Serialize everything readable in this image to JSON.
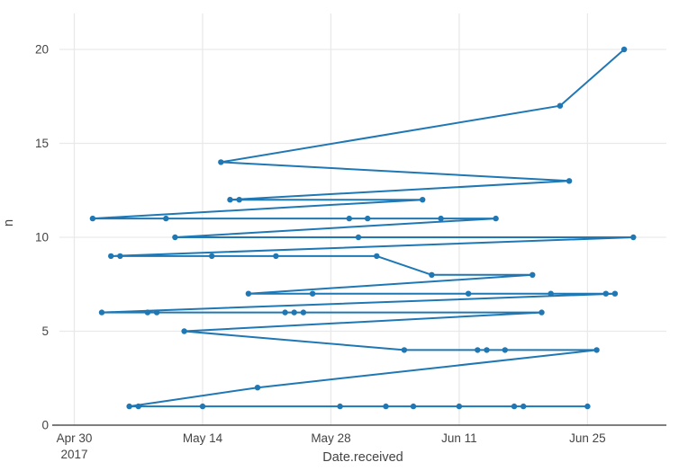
{
  "chart_data": {
    "type": "line",
    "mode": "lines+markers",
    "title": "",
    "xlabel": "Date.received",
    "ylabel": "n",
    "legend": "none",
    "grid": true,
    "line_color": "#1f77b4",
    "marker_color": "#1f77b4",
    "grid_color": "#e9e9e9",
    "axis_line_color": "#333333",
    "tick_label_color": "#444444",
    "background_color": "#ffffff",
    "x_axis": {
      "year_sublabel": "2017",
      "ticks": [
        {
          "day": 0,
          "label": "Apr 30",
          "sublabel": "2017"
        },
        {
          "day": 14,
          "label": "May 14"
        },
        {
          "day": 28,
          "label": "May 28"
        },
        {
          "day": 42,
          "label": "Jun 11"
        },
        {
          "day": 56,
          "label": "Jun 25"
        }
      ],
      "xlim_days": [
        -1.62,
        64.6
      ]
    },
    "y_axis": {
      "ticks": [
        {
          "value": 0,
          "label": "0"
        },
        {
          "value": 5,
          "label": "5"
        },
        {
          "value": 10,
          "label": "10"
        },
        {
          "value": 15,
          "label": "15"
        },
        {
          "value": 20,
          "label": "20"
        }
      ],
      "ylim": [
        0,
        21.9
      ]
    },
    "note": "points are connected by the line in the order listed (count n descending, date ascending within ties); day = offset from Apr 30 2017",
    "series": [
      {
        "name": "n by Date.received",
        "points": [
          {
            "date": "Jun 29",
            "day": 60,
            "n": 20
          },
          {
            "date": "Jun 22",
            "day": 53,
            "n": 17
          },
          {
            "date": "May 16",
            "day": 16,
            "n": 14
          },
          {
            "date": "Jun 23",
            "day": 54,
            "n": 13
          },
          {
            "date": "May 17",
            "day": 17,
            "n": 12
          },
          {
            "date": "May 18",
            "day": 18,
            "n": 12
          },
          {
            "date": "Jun 7",
            "day": 38,
            "n": 12
          },
          {
            "date": "May 2",
            "day": 2,
            "n": 11
          },
          {
            "date": "May 10",
            "day": 10,
            "n": 11
          },
          {
            "date": "May 30",
            "day": 30,
            "n": 11
          },
          {
            "date": "Jun 1",
            "day": 32,
            "n": 11
          },
          {
            "date": "Jun 9",
            "day": 40,
            "n": 11
          },
          {
            "date": "Jun 15",
            "day": 46,
            "n": 11
          },
          {
            "date": "May 11",
            "day": 11,
            "n": 10
          },
          {
            "date": "May 31",
            "day": 31,
            "n": 10
          },
          {
            "date": "Jun 30",
            "day": 61,
            "n": 10
          },
          {
            "date": "May 4",
            "day": 4,
            "n": 9
          },
          {
            "date": "May 5",
            "day": 5,
            "n": 9
          },
          {
            "date": "May 15",
            "day": 15,
            "n": 9
          },
          {
            "date": "May 22",
            "day": 22,
            "n": 9
          },
          {
            "date": "Jun 2",
            "day": 33,
            "n": 9
          },
          {
            "date": "Jun 8",
            "day": 39,
            "n": 8
          },
          {
            "date": "Jun 19",
            "day": 50,
            "n": 8
          },
          {
            "date": "May 19",
            "day": 19,
            "n": 7
          },
          {
            "date": "May 26",
            "day": 26,
            "n": 7
          },
          {
            "date": "Jun 12",
            "day": 43,
            "n": 7
          },
          {
            "date": "Jun 21",
            "day": 52,
            "n": 7
          },
          {
            "date": "Jun 27",
            "day": 58,
            "n": 7
          },
          {
            "date": "Jun 28",
            "day": 59,
            "n": 7
          },
          {
            "date": "May 3",
            "day": 3,
            "n": 6
          },
          {
            "date": "May 8",
            "day": 8,
            "n": 6
          },
          {
            "date": "May 9",
            "day": 9,
            "n": 6
          },
          {
            "date": "May 23",
            "day": 23,
            "n": 6
          },
          {
            "date": "May 24",
            "day": 24,
            "n": 6
          },
          {
            "date": "May 25",
            "day": 25,
            "n": 6
          },
          {
            "date": "Jun 20",
            "day": 51,
            "n": 6
          },
          {
            "date": "May 12",
            "day": 12,
            "n": 5
          },
          {
            "date": "Jun 5",
            "day": 36,
            "n": 4
          },
          {
            "date": "Jun 13",
            "day": 44,
            "n": 4
          },
          {
            "date": "Jun 14",
            "day": 45,
            "n": 4
          },
          {
            "date": "Jun 16",
            "day": 47,
            "n": 4
          },
          {
            "date": "Jun 26",
            "day": 57,
            "n": 4
          },
          {
            "date": "May 20",
            "day": 20,
            "n": 2
          },
          {
            "date": "May 6",
            "day": 6,
            "n": 1
          },
          {
            "date": "May 7",
            "day": 7,
            "n": 1
          },
          {
            "date": "May 14",
            "day": 14,
            "n": 1
          },
          {
            "date": "May 29",
            "day": 29,
            "n": 1
          },
          {
            "date": "Jun 3",
            "day": 34,
            "n": 1
          },
          {
            "date": "Jun 6",
            "day": 37,
            "n": 1
          },
          {
            "date": "Jun 11",
            "day": 42,
            "n": 1
          },
          {
            "date": "Jun 17",
            "day": 48,
            "n": 1
          },
          {
            "date": "Jun 18",
            "day": 49,
            "n": 1
          },
          {
            "date": "Jun 25",
            "day": 56,
            "n": 1
          }
        ]
      }
    ]
  }
}
